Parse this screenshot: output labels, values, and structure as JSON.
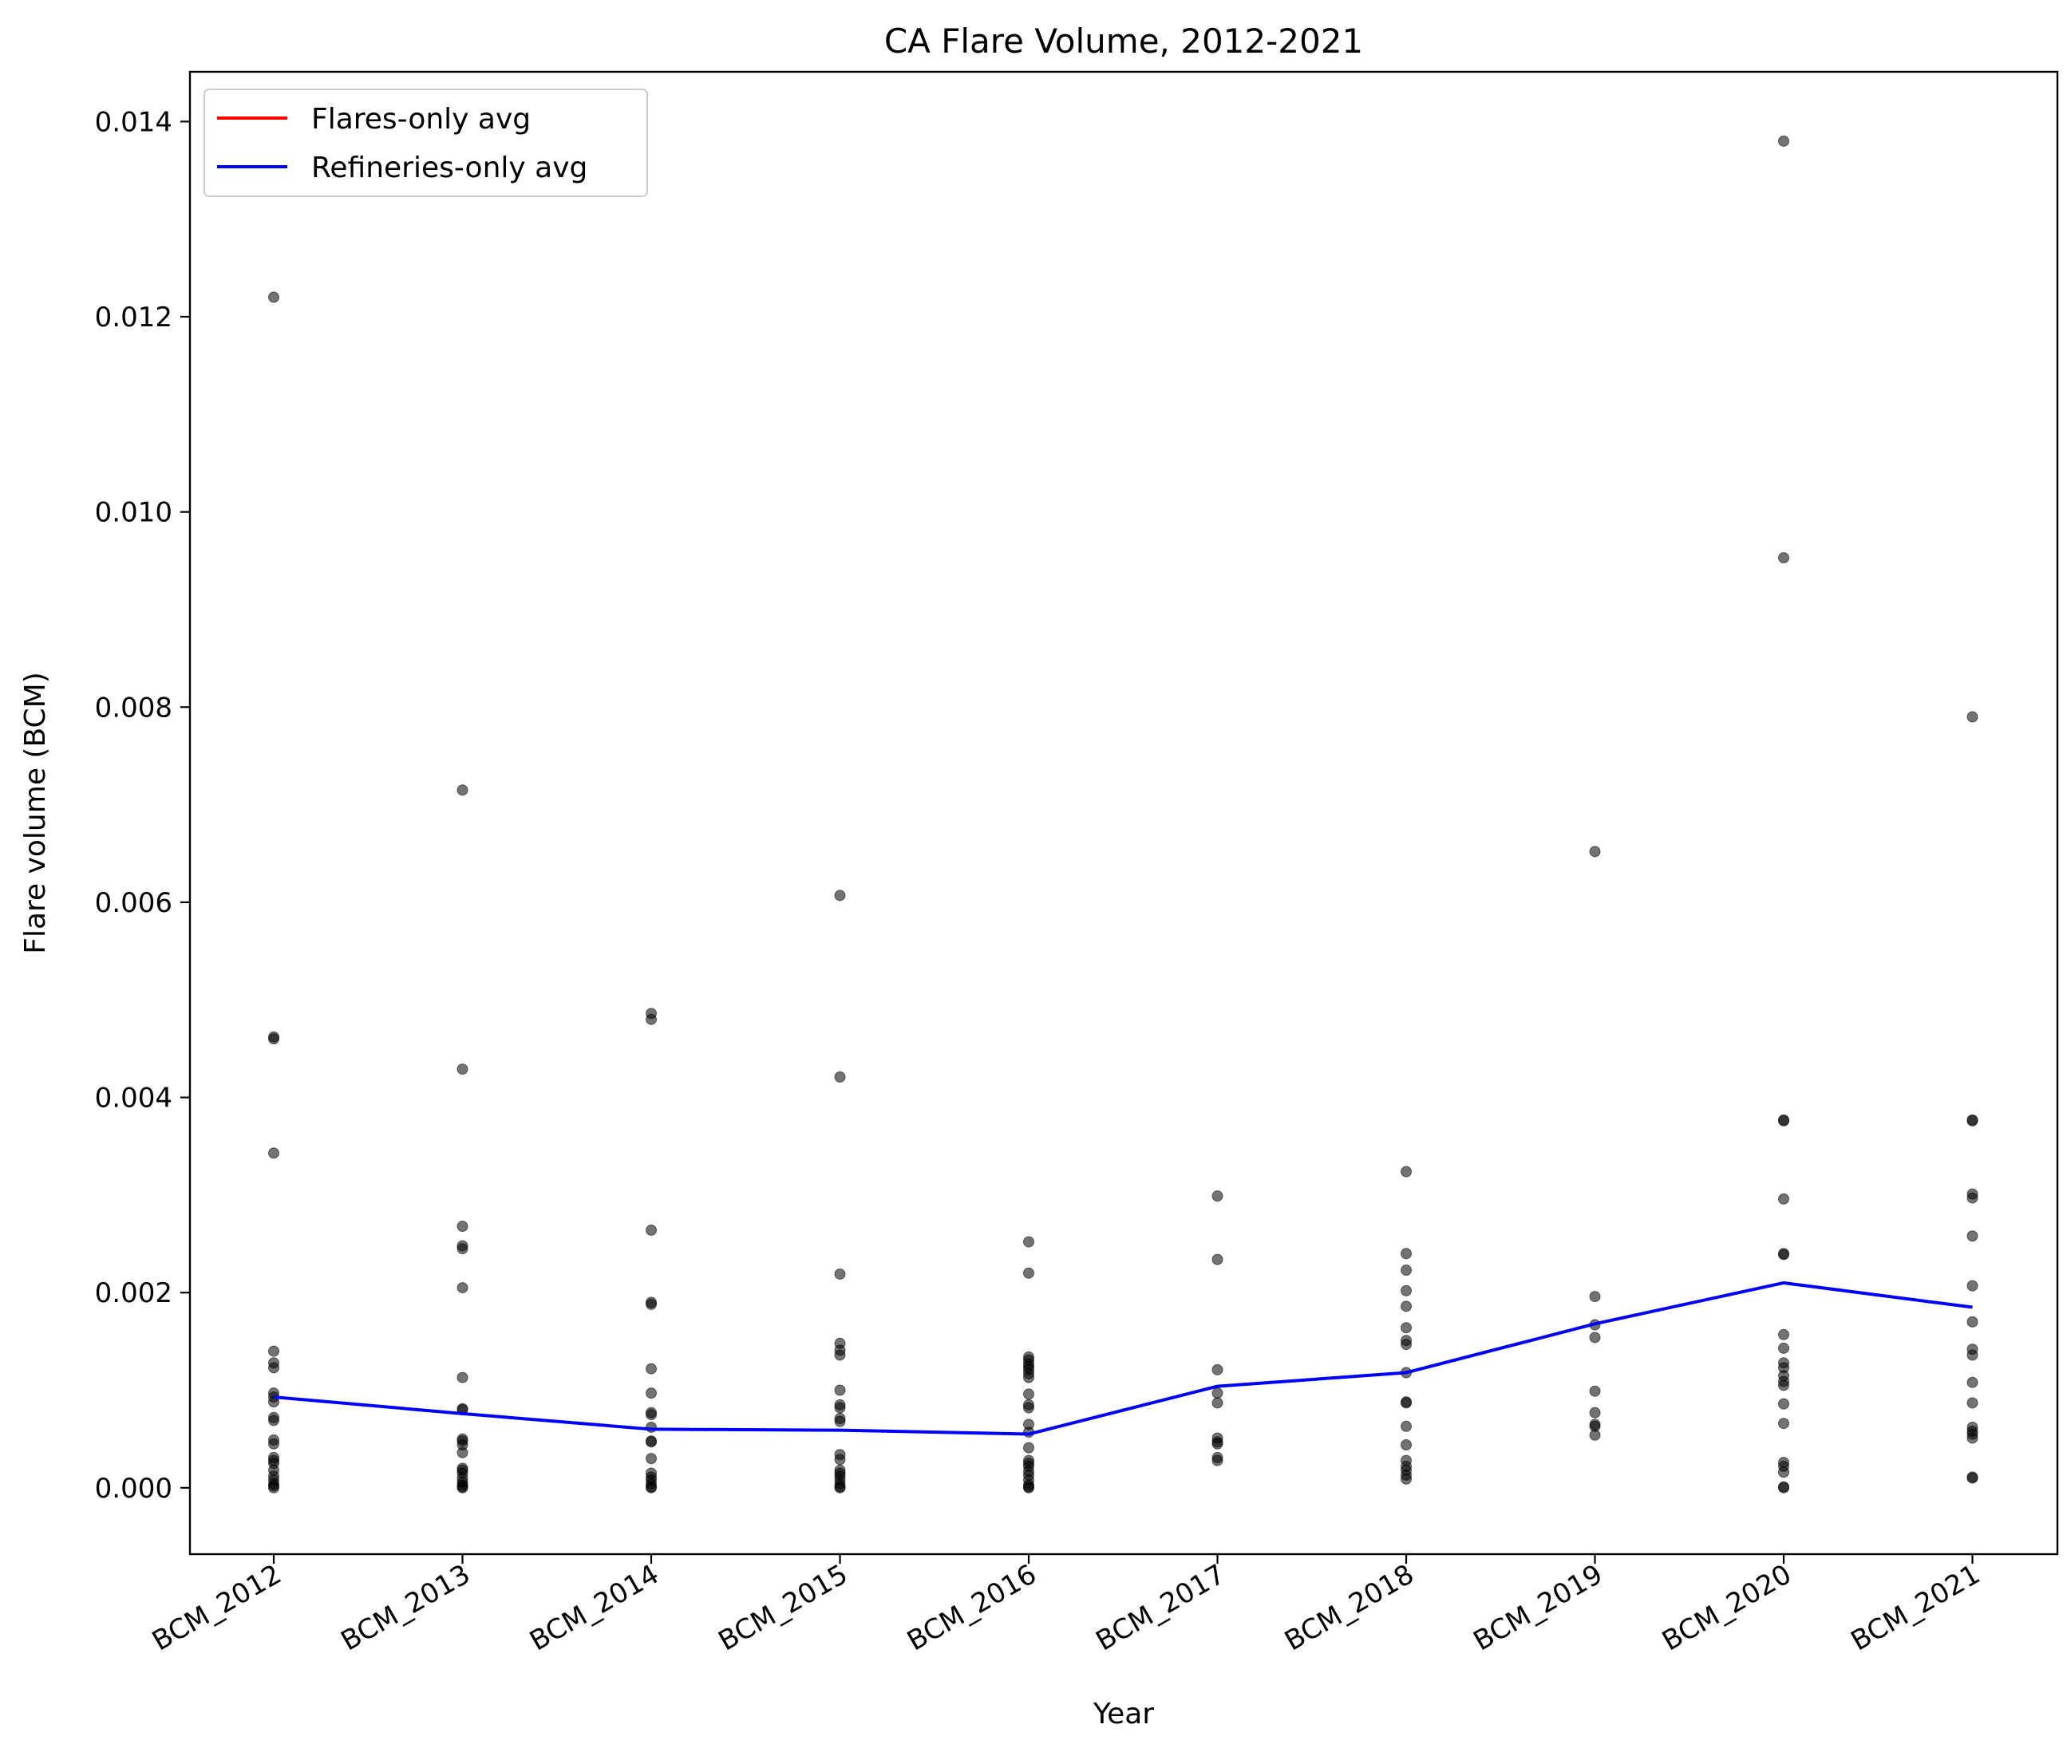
{
  "chart_data": {
    "type": "scatter",
    "title": "CA Flare Volume, 2012-2021",
    "xlabel": "Year",
    "ylabel": "Flare volume (BCM)",
    "categories": [
      "BCM_2012",
      "BCM_2013",
      "BCM_2014",
      "BCM_2015",
      "BCM_2016",
      "BCM_2017",
      "BCM_2018",
      "BCM_2019",
      "BCM_2020",
      "BCM_2021"
    ],
    "ylim": [
      -0.00068,
      0.01451
    ],
    "yticks": [
      0.0,
      0.002,
      0.004,
      0.006,
      0.008,
      0.01,
      0.012,
      0.014
    ],
    "ytick_labels": [
      "0.000",
      "0.002",
      "0.004",
      "0.006",
      "0.008",
      "0.010",
      "0.012",
      "0.014"
    ],
    "grid": false,
    "legend_position": "top-left",
    "scatter_points": [
      [
        0.0122,
        0.0046,
        0.00462,
        0.00343,
        0.0014,
        0.00128,
        0.00123,
        0.00097,
        0.00093,
        0.00088,
        0.00072,
        0.00069,
        0.00049,
        0.00045,
        0.00031,
        0.00028,
        0.00025,
        0.00018,
        0.00012,
        8e-05,
        4e-05,
        2e-05,
        0.0
      ],
      [
        0.00715,
        0.00429,
        0.00268,
        0.00248,
        0.00245,
        0.00205,
        0.00113,
        0.00081,
        0.0008,
        0.0005,
        0.00048,
        0.00044,
        0.00036,
        0.0002,
        0.00018,
        0.00015,
        0.0001,
        6e-05,
        3e-05,
        1e-05,
        0.0
      ],
      [
        0.00486,
        0.0048,
        0.00264,
        0.0019,
        0.00188,
        0.00122,
        0.00097,
        0.00077,
        0.00075,
        0.00062,
        0.00048,
        0.00047,
        0.0003,
        0.00015,
        0.00011,
        8e-05,
        4e-05,
        1e-05,
        0.0
      ],
      [
        0.00607,
        0.00421,
        0.00219,
        0.00148,
        0.00141,
        0.00136,
        0.001,
        0.00085,
        0.00082,
        0.00071,
        0.00068,
        0.00034,
        0.00029,
        0.00018,
        0.00015,
        0.00012,
        8e-05,
        4e-05,
        1e-05,
        0.0
      ],
      [
        0.00252,
        0.0022,
        0.00134,
        0.00131,
        0.00127,
        0.00124,
        0.00121,
        0.00117,
        0.00113,
        0.00096,
        0.00085,
        0.00082,
        0.00065,
        0.00057,
        0.00041,
        0.00028,
        0.00025,
        0.00022,
        0.00017,
        0.00013,
        8e-05,
        3e-05,
        1e-05,
        0.0
      ],
      [
        0.00299,
        0.00234,
        0.00121,
        0.00097,
        0.00087,
        0.00051,
        0.00047,
        0.00045,
        0.00031,
        0.00028
      ],
      [
        0.00324,
        0.0024,
        0.00223,
        0.00202,
        0.00186,
        0.00164,
        0.00151,
        0.00147,
        0.00118,
        0.00088,
        0.00087,
        0.00063,
        0.00044,
        0.00028,
        0.00022,
        0.00018,
        0.00013,
        9e-05
      ],
      [
        0.00652,
        0.00196,
        0.00167,
        0.00154,
        0.00099,
        0.00077,
        0.00065,
        0.00063,
        0.00054
      ],
      [
        0.0138,
        0.00953,
        0.00377,
        0.00376,
        0.00296,
        0.0024,
        0.00239,
        0.00157,
        0.00143,
        0.00128,
        0.00123,
        0.00115,
        0.00109,
        0.00105,
        0.00086,
        0.00066,
        0.00026,
        0.00022,
        0.00016,
        1e-05,
        0.0
      ],
      [
        0.0079,
        0.00377,
        0.00376,
        0.00301,
        0.00297,
        0.00258,
        0.00207,
        0.0017,
        0.00142,
        0.00136,
        0.00108,
        0.00087,
        0.00062,
        0.00058,
        0.00055,
        0.00051,
        0.00011,
        0.0001
      ]
    ],
    "series": [
      {
        "name": "Flares-only avg",
        "color": "#ff0000",
        "values": []
      },
      {
        "name": "Refineries-only avg",
        "color": "#0000ff",
        "values": [
          0.00093,
          0.00076,
          0.0006,
          0.00059,
          0.00055,
          0.00104,
          0.00118,
          0.00168,
          0.0021,
          0.00185
        ]
      }
    ],
    "point_color": "#000000"
  }
}
